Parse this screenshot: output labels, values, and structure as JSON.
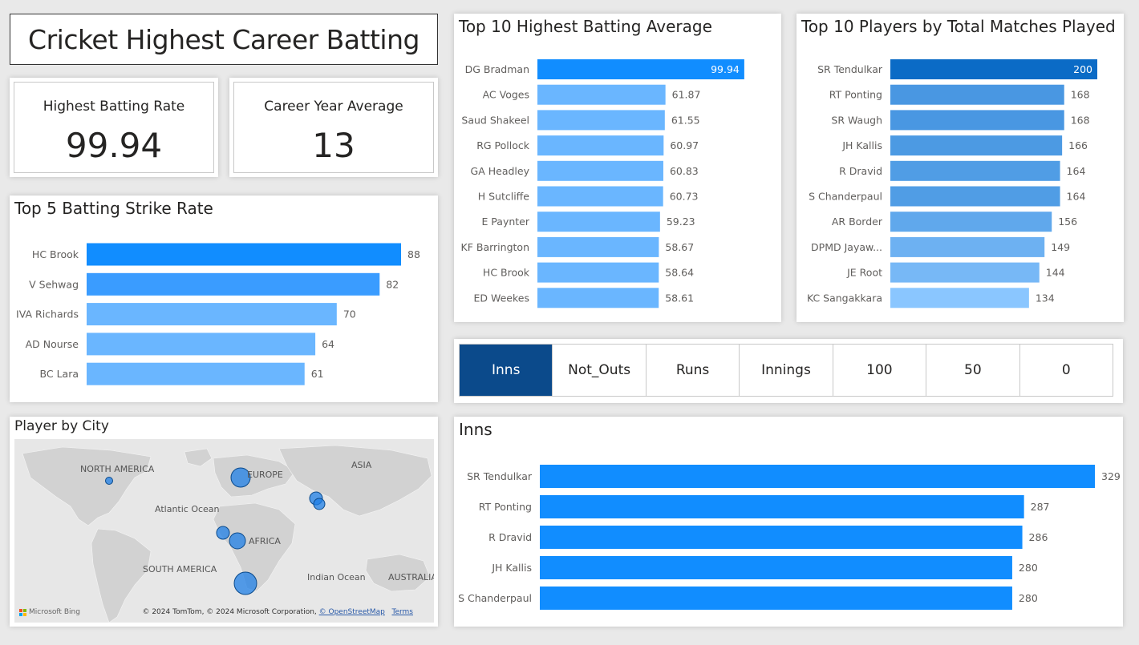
{
  "title": "Cricket Highest Career Batting",
  "kpis": [
    {
      "label": "Highest Batting Rate",
      "value": "99.94"
    },
    {
      "label": "Career Year Average",
      "value": "13"
    }
  ],
  "colors": {
    "bar_primary": "#118dff",
    "bar_light": "#6ab6ff",
    "bar_dark": "#0b6bc6",
    "slicer_selected": "#0b4a8b",
    "bubble": "#1f7fe6"
  },
  "chart_data": [
    {
      "id": "batting_average",
      "type": "bar",
      "title": "Top 10 Highest Batting Average",
      "categories": [
        "DG Bradman",
        "AC Voges",
        "Saud Shakeel",
        "RG Pollock",
        "GA Headley",
        "H Sutcliffe",
        "E Paynter",
        "KF Barrington",
        "HC Brook",
        "ED Weekes"
      ],
      "values": [
        99.94,
        61.87,
        61.55,
        60.97,
        60.83,
        60.73,
        59.23,
        58.67,
        58.64,
        58.61
      ],
      "xlim": [
        0,
        112
      ]
    },
    {
      "id": "matches",
      "type": "bar",
      "title": "Top 10 Players by Total Matches Played",
      "categories": [
        "SR Tendulkar",
        "RT Ponting",
        "SR Waugh",
        "JH Kallis",
        "R Dravid",
        "S Chanderpaul",
        "AR Border",
        "DPMD Jayaw...",
        "JE Root",
        "KC Sangakkara"
      ],
      "values": [
        200,
        168,
        168,
        166,
        164,
        164,
        156,
        149,
        144,
        134
      ],
      "xlim": [
        0,
        200
      ]
    },
    {
      "id": "strike_rate",
      "type": "bar",
      "title": "Top 5 Batting Strike Rate",
      "categories": [
        "HC Brook",
        "V Sehwag",
        "IVA Richards",
        "AD Nourse",
        "BC Lara"
      ],
      "values": [
        88,
        82,
        70,
        64,
        61
      ],
      "xlim": [
        0,
        88
      ]
    },
    {
      "id": "inns",
      "type": "bar",
      "title": "Inns",
      "categories": [
        "SR Tendulkar",
        "RT Ponting",
        "R Dravid",
        "JH Kallis",
        "S Chanderpaul"
      ],
      "values": [
        329,
        287,
        286,
        280,
        280
      ],
      "xlim": [
        0,
        329
      ]
    }
  ],
  "slicer": {
    "options": [
      "Inns",
      "Not_Outs",
      "Runs",
      "Innings",
      "100",
      "50",
      "0"
    ],
    "selected": "Inns"
  },
  "map": {
    "title": "Player by City",
    "labels": [
      "NORTH AMERICA",
      "EUROPE",
      "ASIA",
      "Atlantic Ocean",
      "AFRICA",
      "SOUTH AMERICA",
      "Indian Ocean",
      "AUSTRALIA"
    ],
    "copyright_text": "© 2024 TomTom, © 2024 Microsoft Corporation, ",
    "copyright_link": "© OpenStreetMap",
    "terms": "Terms",
    "logo_text": "Microsoft Bing"
  }
}
